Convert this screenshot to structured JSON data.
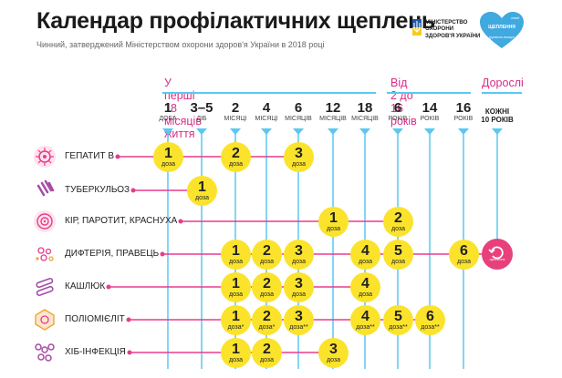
{
  "title": "Календар профілактичних щеплень",
  "subtitle": "Чинний, затверджений Міністерством охорони здоров'я України в 2018 році",
  "ministry_logo": {
    "text": "МІНІСТЕРСТВО ОХОРОНИ ЗДОРОВ'Я УКРАЇНИ",
    "icon": "trident-icon"
  },
  "campaign_logo": {
    "text": "ЩЕПЛЕННЯ",
    "sub": "(рухаючи знижує)",
    "brand": "unicef",
    "icon": "heart-icon"
  },
  "age_groups": [
    {
      "label": "У перші 18 місяців життя"
    },
    {
      "label": "Від 2 до 16 років"
    },
    {
      "label": "Дорослі"
    }
  ],
  "ages": [
    {
      "number": "1",
      "unit": "доба"
    },
    {
      "number": "3–5",
      "unit": "діб"
    },
    {
      "number": "2",
      "unit": "місяці"
    },
    {
      "number": "4",
      "unit": "місяці"
    },
    {
      "number": "6",
      "unit": "місяців"
    },
    {
      "number": "12",
      "unit": "місяців"
    },
    {
      "number": "18",
      "unit": "місяців"
    },
    {
      "number": "6",
      "unit": "років"
    },
    {
      "number": "14",
      "unit": "років"
    },
    {
      "number": "16",
      "unit": "років"
    },
    {
      "number": "",
      "unit": "",
      "extra": "КОЖНІ 10 РОКІВ"
    }
  ],
  "dose_label": "доза",
  "adult_badge_label": "щеплення",
  "diseases": [
    {
      "name": "Гепатит В",
      "icon": "virus-icon",
      "doses": [
        {
          "col": 0,
          "n": "1",
          "mark": ""
        },
        {
          "col": 2,
          "n": "2",
          "mark": ""
        },
        {
          "col": 4,
          "n": "3",
          "mark": ""
        }
      ]
    },
    {
      "name": "Туберкульоз",
      "icon": "bacteria-icon",
      "doses": [
        {
          "col": 1,
          "n": "1",
          "mark": ""
        }
      ]
    },
    {
      "name": "Кір, паротит, краснуха",
      "icon": "spiral-virus-icon",
      "doses": [
        {
          "col": 5,
          "n": "1",
          "mark": ""
        },
        {
          "col": 7,
          "n": "2",
          "mark": ""
        }
      ]
    },
    {
      "name": "Дифтерія, правець",
      "icon": "microbe-cluster-icon",
      "doses": [
        {
          "col": 2,
          "n": "1",
          "mark": ""
        },
        {
          "col": 3,
          "n": "2",
          "mark": ""
        },
        {
          "col": 4,
          "n": "3",
          "mark": ""
        },
        {
          "col": 6,
          "n": "4",
          "mark": ""
        },
        {
          "col": 7,
          "n": "5",
          "mark": ""
        },
        {
          "col": 9,
          "n": "6",
          "mark": ""
        }
      ],
      "adult": true
    },
    {
      "name": "Кашлюк",
      "icon": "capsule-bacteria-icon",
      "doses": [
        {
          "col": 2,
          "n": "1",
          "mark": ""
        },
        {
          "col": 3,
          "n": "2",
          "mark": ""
        },
        {
          "col": 4,
          "n": "3",
          "mark": ""
        },
        {
          "col": 6,
          "n": "4",
          "mark": ""
        }
      ]
    },
    {
      "name": "Поліомієліт",
      "icon": "hexagon-virus-icon",
      "doses": [
        {
          "col": 2,
          "n": "1",
          "mark": "*"
        },
        {
          "col": 3,
          "n": "2",
          "mark": "*"
        },
        {
          "col": 4,
          "n": "3",
          "mark": "**"
        },
        {
          "col": 6,
          "n": "4",
          "mark": "**"
        },
        {
          "col": 7,
          "n": "5",
          "mark": "**"
        },
        {
          "col": 8,
          "n": "6",
          "mark": "**"
        }
      ]
    },
    {
      "name": "ХІБ-інфекція",
      "icon": "coccus-chain-icon",
      "doses": [
        {
          "col": 2,
          "n": "1",
          "mark": ""
        },
        {
          "col": 3,
          "n": "2",
          "mark": ""
        },
        {
          "col": 5,
          "n": "3",
          "mark": ""
        }
      ]
    }
  ],
  "colors": {
    "line": "#5ac8f0",
    "row": "#e83b8d",
    "dose": "#fbe32c",
    "group": "#d62f87",
    "badge": "#e8407a"
  }
}
